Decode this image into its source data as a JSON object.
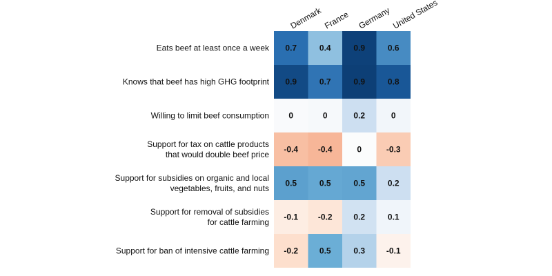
{
  "chart_data": {
    "type": "heatmap",
    "title": "",
    "columns": [
      "Denmark",
      "France",
      "Germany",
      "United States"
    ],
    "rows": [
      [
        "Eats beef at least once a week"
      ],
      [
        "Knows that beef has high GHG footprint"
      ],
      [
        "Willing to limit beef consumption"
      ],
      [
        "Support for tax on cattle products",
        "that would double beef price"
      ],
      [
        "Support for subsidies on organic and local",
        "vegetables, fruits, and nuts"
      ],
      [
        "Support for removal of subsidies",
        "for cattle farming"
      ],
      [
        "Support for ban of intensive cattle farming"
      ]
    ],
    "values": [
      [
        0.7,
        0.4,
        0.9,
        0.6
      ],
      [
        0.9,
        0.7,
        0.9,
        0.8
      ],
      [
        0,
        0,
        0.2,
        0
      ],
      [
        -0.4,
        -0.4,
        0,
        -0.3
      ],
      [
        0.5,
        0.5,
        0.5,
        0.2
      ],
      [
        -0.1,
        -0.2,
        0.2,
        0.1
      ],
      [
        -0.2,
        0.5,
        0.3,
        -0.1
      ]
    ],
    "fill_values": [
      [
        0.72,
        0.4,
        0.92,
        0.62
      ],
      [
        0.88,
        0.7,
        0.93,
        0.82
      ],
      [
        0.02,
        0.03,
        0.22,
        0.05
      ],
      [
        -0.38,
        -0.42,
        0.01,
        -0.32
      ],
      [
        0.55,
        0.52,
        0.53,
        0.22
      ],
      [
        -0.12,
        -0.17,
        0.2,
        0.06
      ],
      [
        -0.22,
        0.5,
        0.3,
        -0.08
      ]
    ],
    "color_scale": {
      "domain": [
        -1,
        0,
        1
      ],
      "negative": "#b2182b",
      "neutral": "#fdfdfd",
      "positive": "#053061"
    },
    "legend": "none",
    "grid": false
  }
}
